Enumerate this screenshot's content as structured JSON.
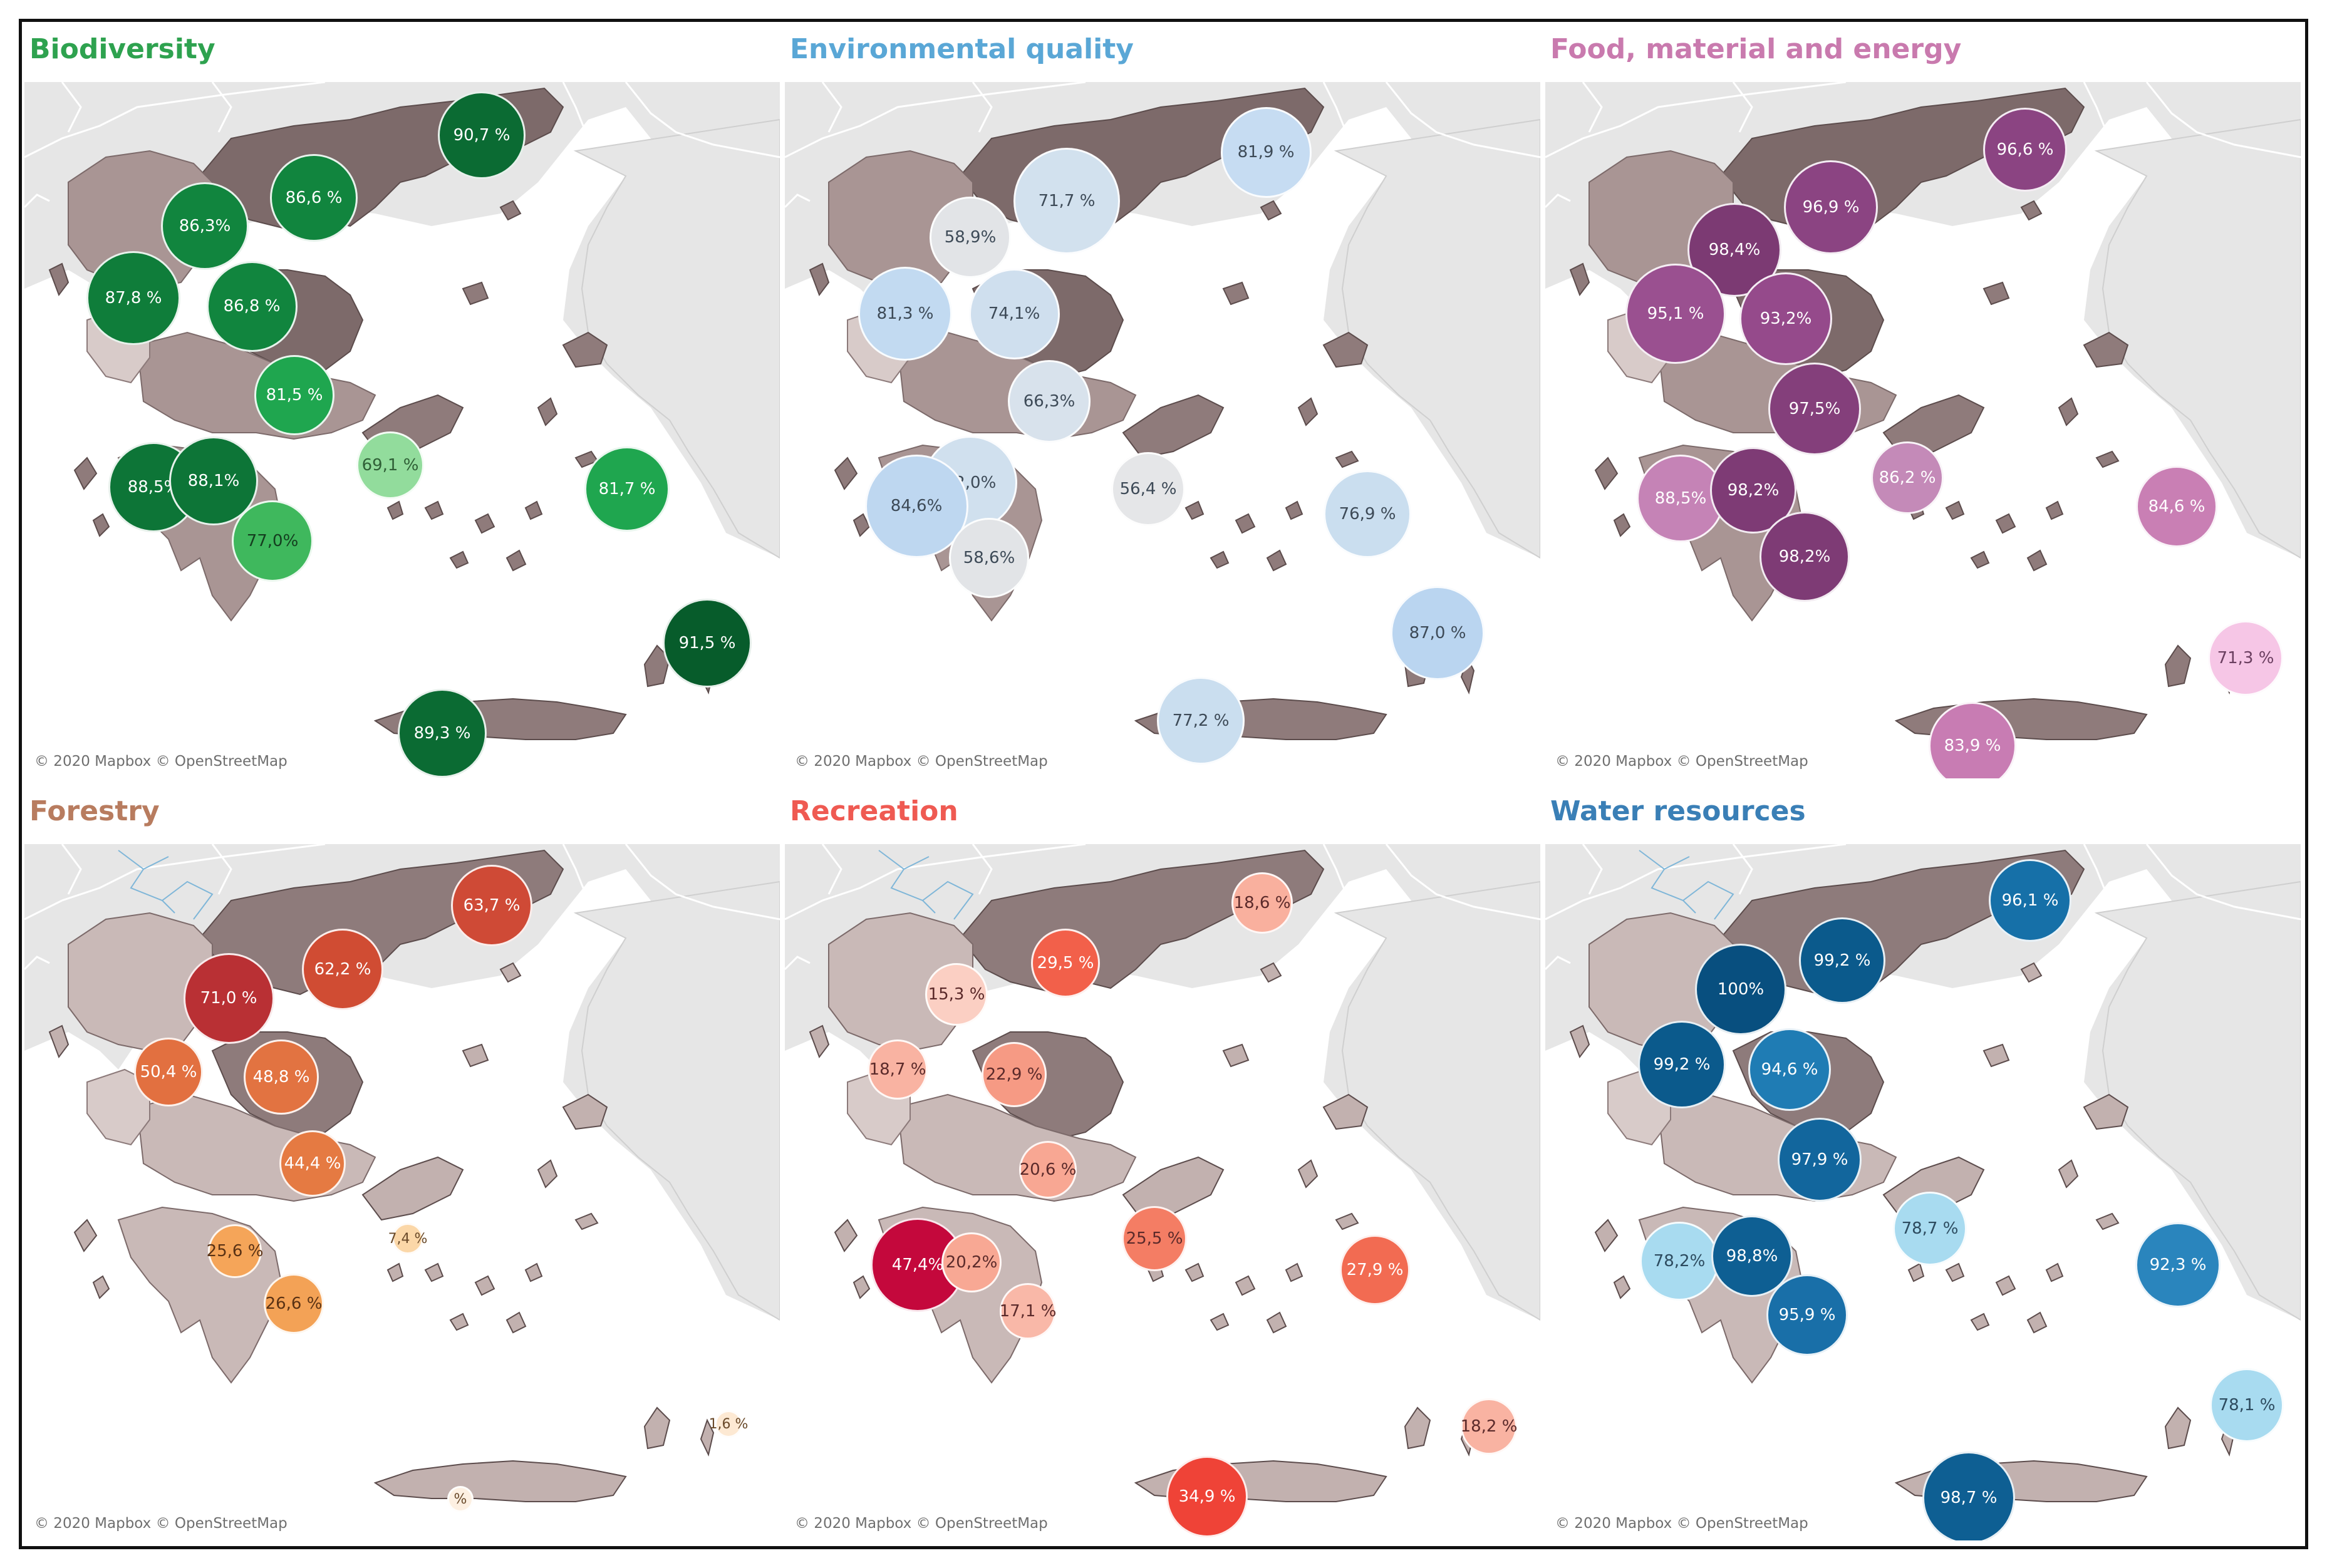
{
  "attribution": "© 2020 Mapbox © OpenStreetMap",
  "panels": [
    {
      "title": "Biodiversity",
      "title_color": "#2ea24f",
      "bubble_text_color": "#ffffff",
      "points": [
        {
          "label": "90,7 %",
          "color": "#0b6b33"
        },
        {
          "label": "86,6 %",
          "color": "#11853e"
        },
        {
          "label": "86,3%",
          "color": "#11853e"
        },
        {
          "label": "87,8 %",
          "color": "#0f7d3a"
        },
        {
          "label": "86,8 %",
          "color": "#11853e"
        },
        {
          "label": "81,5 %",
          "color": "#1fa64f"
        },
        {
          "label": "69,1 %",
          "color": "#92dc9c",
          "text_color": "#2f5f36"
        },
        {
          "label": "88,5%",
          "color": "#0d7537"
        },
        {
          "label": "88,1%",
          "color": "#0d7537"
        },
        {
          "label": "77,0%",
          "color": "#3fb85d",
          "text_color": "#143e1f"
        },
        {
          "label": "81,7 %",
          "color": "#1fa64f"
        },
        {
          "label": "91,5 %",
          "color": "#075c2b"
        },
        {
          "label": "89,3 %",
          "color": "#0b6b33"
        }
      ]
    },
    {
      "title": "Environmental quality",
      "title_color": "#5aa7d6",
      "bubble_text_color": "#3d4a57",
      "points": [
        {
          "label": "81,9 %",
          "color": "#c6dcf2"
        },
        {
          "label": "71,7 %",
          "color": "#d2e1ee"
        },
        {
          "label": "58,9%",
          "color": "#e2e4e7"
        },
        {
          "label": "81,3 %",
          "color": "#c2daf1"
        },
        {
          "label": "74,1%",
          "color": "#cfdfee"
        },
        {
          "label": "66,3%",
          "color": "#d8e2ec"
        },
        {
          "label": "56,4 %",
          "color": "#e5e6e8"
        },
        {
          "label": "72,0%",
          "color": "#d0e0ee"
        },
        {
          "label": "84,6%",
          "color": "#bed7f0"
        },
        {
          "label": "58,6%",
          "color": "#e2e4e7"
        },
        {
          "label": "76,9 %",
          "color": "#cadeef"
        },
        {
          "label": "87,0 %",
          "color": "#bad5f0"
        },
        {
          "label": "77,2 %",
          "color": "#cadeef"
        }
      ]
    },
    {
      "title": "Food, material and energy",
      "title_color": "#c97aae",
      "bubble_text_color": "#ffffff",
      "points": [
        {
          "label": "96,6 %",
          "color": "#8b4482"
        },
        {
          "label": "96,9 %",
          "color": "#8b4482"
        },
        {
          "label": "98,4%",
          "color": "#7c3a73"
        },
        {
          "label": "95,1 %",
          "color": "#9a5090"
        },
        {
          "label": "93,2%",
          "color": "#954a8b"
        },
        {
          "label": "97,5%",
          "color": "#843f7b"
        },
        {
          "label": "86,2 %",
          "color": "#c48ab8"
        },
        {
          "label": "88,5%",
          "color": "#c583b6"
        },
        {
          "label": "98,2%",
          "color": "#7e3b75"
        },
        {
          "label": "98,2%",
          "color": "#7e3b75"
        },
        {
          "label": "84,6 %",
          "color": "#c97fb4"
        },
        {
          "label": "71,3 %",
          "color": "#f6c6e6",
          "text_color": "#6b3f60"
        },
        {
          "label": "83,9 %",
          "color": "#c87cb3"
        }
      ]
    },
    {
      "title": "Forestry",
      "title_color": "#b87c5f",
      "bubble_text_color": "#ffffff",
      "points": [
        {
          "label": "63,7 %",
          "color": "#cf4a36"
        },
        {
          "label": "62,2 %",
          "color": "#d04c33"
        },
        {
          "label": "71,0 %",
          "color": "#b93034"
        },
        {
          "label": "50,4 %",
          "color": "#e27040"
        },
        {
          "label": "48,8 %",
          "color": "#e27341"
        },
        {
          "label": "44,4 %",
          "color": "#e57a42"
        },
        {
          "label": "25,6 %",
          "color": "#f5a559",
          "text_color": "#5a3214"
        },
        {
          "label": "26,6 %",
          "color": "#f3a256",
          "text_color": "#5a3214"
        },
        {
          "label": "7,4 %",
          "color": "#fbd7a8",
          "text_color": "#6a4a2a"
        },
        {
          "label": "1,6 %",
          "color": "#fde9d3",
          "text_color": "#6a4a2a"
        },
        {
          "label": "%",
          "color": "#fdf0e2",
          "text_color": "#6a4a2a"
        }
      ]
    },
    {
      "title": "Recreation",
      "title_color": "#ef5a52",
      "bubble_text_color": "#5b2a2a",
      "points": [
        {
          "label": "18,6 %",
          "color": "#f9b09e"
        },
        {
          "label": "29,5 %",
          "color": "#f2604a",
          "text_color": "#ffffff"
        },
        {
          "label": "15,3 %",
          "color": "#fbcfc3"
        },
        {
          "label": "18,7 %",
          "color": "#f9b3a2"
        },
        {
          "label": "22,9 %",
          "color": "#f69a84"
        },
        {
          "label": "20,6 %",
          "color": "#f8a793"
        },
        {
          "label": "47,4%",
          "color": "#c4083c",
          "text_color": "#ffffff"
        },
        {
          "label": "20,2%",
          "color": "#f8a894"
        },
        {
          "label": "25,5 %",
          "color": "#f47d64"
        },
        {
          "label": "17,1 %",
          "color": "#f9b8a8"
        },
        {
          "label": "27,9 %",
          "color": "#f26b52",
          "text_color": "#ffffff"
        },
        {
          "label": "18,2 %",
          "color": "#f9b3a2"
        },
        {
          "label": "34,9 %",
          "color": "#ef4337",
          "text_color": "#ffffff"
        }
      ]
    },
    {
      "title": "Water resources",
      "title_color": "#3a7fb6",
      "bubble_text_color": "#ffffff",
      "points": [
        {
          "label": "96,1 %",
          "color": "#1670a8"
        },
        {
          "label": "99,2 %",
          "color": "#0b5a8c"
        },
        {
          "label": "100%",
          "color": "#084f7f"
        },
        {
          "label": "99,2 %",
          "color": "#0b5a8c"
        },
        {
          "label": "94,6 %",
          "color": "#1f7cb4"
        },
        {
          "label": "97,9 %",
          "color": "#12669d"
        },
        {
          "label": "78,7 %",
          "color": "#a8dbf0",
          "text_color": "#2d4b5f"
        },
        {
          "label": "78,2%",
          "color": "#a8dbf0",
          "text_color": "#2d4b5f"
        },
        {
          "label": "98,8%",
          "color": "#0e5f93"
        },
        {
          "label": "95,9 %",
          "color": "#196fa8"
        },
        {
          "label": "92,3 %",
          "color": "#2a85bd"
        },
        {
          "label": "78,1 %",
          "color": "#a8dbf0",
          "text_color": "#2d4b5f"
        },
        {
          "label": "98,7 %",
          "color": "#0e5f93"
        }
      ]
    }
  ]
}
